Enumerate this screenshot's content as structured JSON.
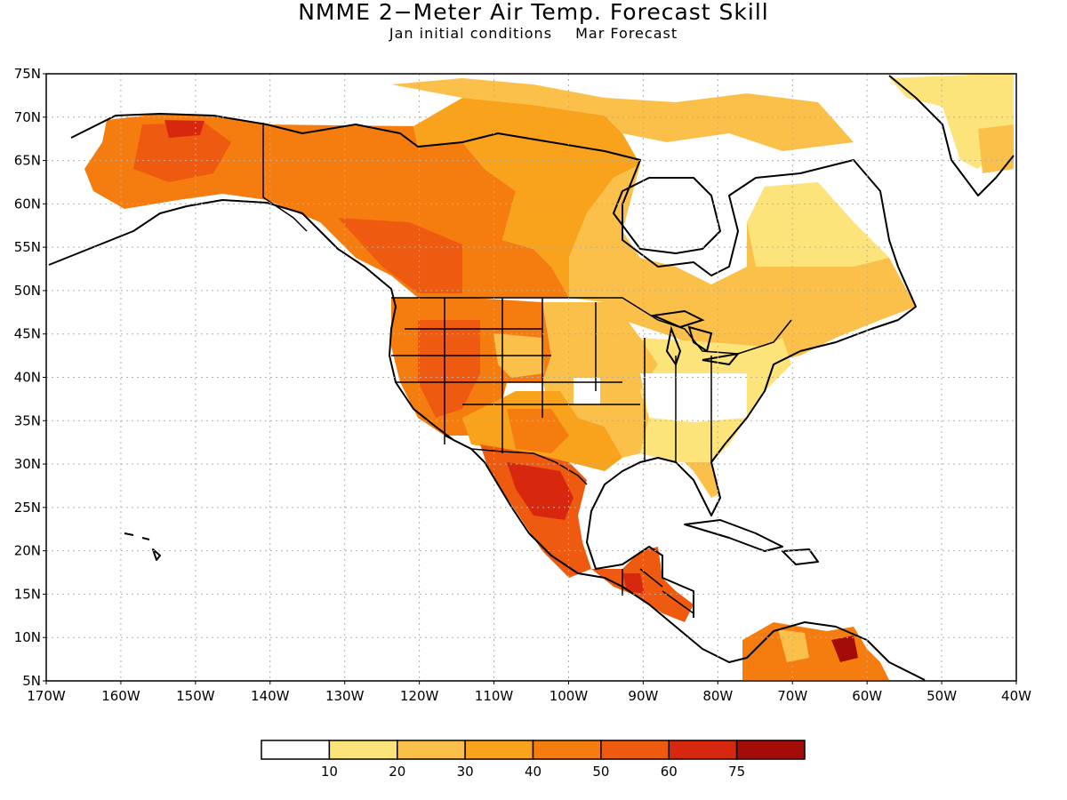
{
  "title": "NMME 2−Meter Air Temp. Forecast Skill",
  "subtitle_left": "Jan initial conditions",
  "subtitle_right": "Mar Forecast",
  "lat_labels": [
    "75N",
    "70N",
    "65N",
    "60N",
    "55N",
    "50N",
    "45N",
    "40N",
    "35N",
    "30N",
    "25N",
    "20N",
    "15N",
    "10N",
    "5N"
  ],
  "lon_labels": [
    "170W",
    "160W",
    "150W",
    "140W",
    "130W",
    "120W",
    "110W",
    "100W",
    "90W",
    "80W",
    "70W",
    "60W",
    "50W",
    "40W"
  ],
  "colorbar": {
    "colors": [
      "#ffffff",
      "#fde47a",
      "#fbc04a",
      "#f9a21c",
      "#f57d10",
      "#ee5a0f",
      "#d7280f",
      "#a30c08"
    ],
    "labels": [
      "10",
      "20",
      "30",
      "40",
      "50",
      "60",
      "75"
    ]
  }
}
